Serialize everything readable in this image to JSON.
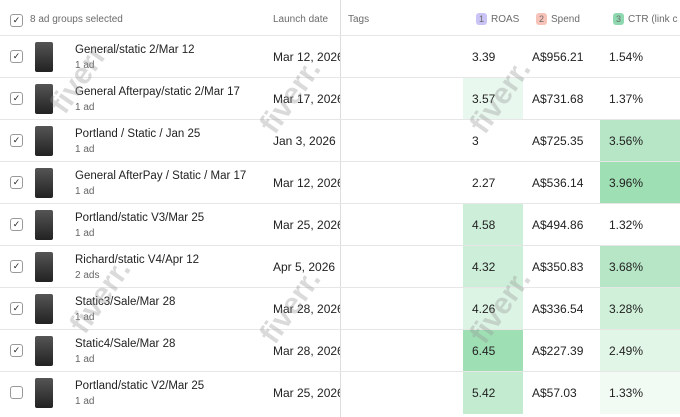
{
  "header": {
    "selected": "8 ad groups selected",
    "launch_date": "Launch date",
    "tags": "Tags",
    "metrics": [
      {
        "badge": "1",
        "label": "ROAS"
      },
      {
        "badge": "2",
        "label": "Spend"
      },
      {
        "badge": "3",
        "label": "CTR (link c"
      }
    ]
  },
  "watermark": "fiverr.",
  "table": {
    "rows": [
      {
        "name": "General/static 2/Mar 12",
        "ads": "1 ad",
        "launch": "Mar 12, 2026",
        "roas": "3.39",
        "spend": "A$956.21",
        "ctr": "1.54%"
      },
      {
        "name": "General Afterpay/static 2/Mar 17",
        "ads": "1 ad",
        "launch": "Mar 17, 2026",
        "roas": "3.57",
        "spend": "A$731.68",
        "ctr": "1.37%"
      },
      {
        "name": "Portland / Static / Jan 25",
        "ads": "1 ad",
        "launch": "Jan 3, 2026",
        "roas": "3",
        "spend": "A$725.35",
        "ctr": "3.56%"
      },
      {
        "name": "General AfterPay / Static / Mar 17",
        "ads": "1 ad",
        "launch": "Mar 12, 2026",
        "roas": "2.27",
        "spend": "A$536.14",
        "ctr": "3.96%"
      },
      {
        "name": "Portland/static V3/Mar 25",
        "ads": "1 ad",
        "launch": "Mar 25, 2026",
        "roas": "4.58",
        "spend": "A$494.86",
        "ctr": "1.32%"
      },
      {
        "name": "Richard/static V4/Apr 12",
        "ads": "2 ads",
        "launch": "Apr 5, 2026",
        "roas": "4.32",
        "spend": "A$350.83",
        "ctr": "3.68%"
      },
      {
        "name": "Static3/Sale/Mar 28",
        "ads": "1 ad",
        "launch": "Mar 28, 2026",
        "roas": "4.26",
        "spend": "A$336.54",
        "ctr": "3.28%"
      },
      {
        "name": "Static4/Sale/Mar 28",
        "ads": "1 ad",
        "launch": "Mar 28, 2026",
        "roas": "6.45",
        "spend": "A$227.39",
        "ctr": "2.49%"
      },
      {
        "name": "Portland/static V2/Mar 25",
        "ads": "1 ad",
        "launch": "Mar 25, 2026",
        "roas": "5.42",
        "spend": "A$57.03",
        "ctr": "1.33%"
      }
    ]
  }
}
